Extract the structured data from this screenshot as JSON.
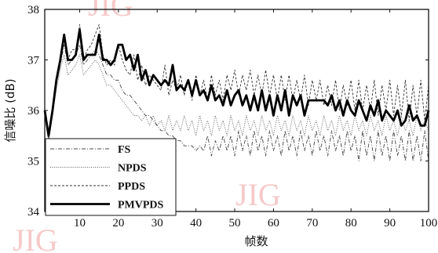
{
  "chart_data": {
    "type": "line",
    "title": "",
    "xlabel": "帧数",
    "ylabel": "信噪比 (dB)",
    "xlim": [
      1,
      100
    ],
    "ylim": [
      34,
      38
    ],
    "xticks": [
      10,
      20,
      30,
      40,
      50,
      60,
      70,
      80,
      90,
      100
    ],
    "yticks": [
      34,
      35,
      36,
      37,
      38
    ],
    "grid": false,
    "legend_position": "bottom-left",
    "x": [
      1,
      2,
      3,
      4,
      5,
      6,
      7,
      8,
      9,
      10,
      11,
      12,
      13,
      14,
      15,
      16,
      17,
      18,
      19,
      20,
      21,
      22,
      23,
      24,
      25,
      26,
      27,
      28,
      29,
      30,
      31,
      32,
      33,
      34,
      35,
      36,
      37,
      38,
      39,
      40,
      41,
      42,
      43,
      44,
      45,
      46,
      47,
      48,
      49,
      50,
      51,
      52,
      53,
      54,
      55,
      56,
      57,
      58,
      59,
      60,
      61,
      62,
      63,
      64,
      65,
      66,
      67,
      68,
      69,
      70,
      71,
      72,
      73,
      74,
      75,
      76,
      77,
      78,
      79,
      80,
      81,
      82,
      83,
      84,
      85,
      86,
      87,
      88,
      89,
      90,
      91,
      92,
      93,
      94,
      95,
      96,
      97,
      98,
      99,
      100
    ],
    "series": [
      {
        "name": "FS",
        "style": "dashdot",
        "values": [
          36.0,
          35.4,
          35.9,
          36.5,
          36.9,
          37.3,
          36.9,
          37.0,
          37.1,
          37.3,
          36.9,
          37.0,
          37.1,
          37.2,
          37.1,
          36.9,
          36.7,
          36.7,
          36.6,
          36.6,
          36.4,
          36.3,
          36.3,
          36.2,
          36.1,
          36.0,
          35.9,
          35.9,
          35.8,
          35.7,
          35.6,
          35.6,
          35.5,
          35.5,
          35.4,
          35.4,
          35.3,
          35.3,
          35.3,
          35.2,
          35.3,
          35.2,
          35.5,
          35.1,
          35.4,
          35.2,
          35.5,
          35.2,
          35.5,
          35.1,
          35.6,
          35.2,
          35.5,
          35.1,
          35.6,
          35.2,
          35.5,
          35.1,
          35.6,
          35.2,
          35.5,
          35.1,
          35.6,
          35.2,
          35.5,
          35.1,
          35.6,
          35.2,
          35.5,
          35.1,
          35.6,
          35.2,
          35.5,
          35.1,
          35.6,
          35.2,
          35.5,
          35.1,
          35.6,
          35.2,
          35.5,
          35.0,
          35.6,
          35.1,
          35.5,
          35.0,
          35.6,
          35.1,
          35.5,
          35.0,
          35.6,
          35.1,
          35.5,
          35.0,
          35.6,
          35.0,
          35.5,
          35.0,
          35.6,
          35.0
        ]
      },
      {
        "name": "NPDS",
        "style": "dotted",
        "values": [
          35.9,
          35.4,
          35.9,
          36.4,
          36.8,
          37.1,
          36.7,
          36.8,
          36.9,
          37.1,
          36.7,
          36.8,
          36.9,
          37.0,
          36.9,
          36.7,
          36.5,
          36.5,
          36.4,
          36.3,
          36.2,
          36.1,
          36.0,
          35.9,
          35.9,
          35.8,
          35.9,
          35.7,
          35.9,
          35.7,
          35.8,
          35.6,
          35.9,
          35.6,
          35.8,
          35.6,
          35.9,
          35.6,
          35.8,
          35.5,
          35.9,
          35.6,
          35.8,
          35.5,
          35.9,
          35.6,
          35.8,
          35.5,
          35.9,
          35.6,
          35.8,
          35.5,
          35.9,
          35.6,
          35.8,
          35.5,
          35.9,
          35.6,
          35.8,
          35.5,
          35.9,
          35.6,
          35.8,
          35.5,
          35.9,
          35.6,
          35.8,
          35.5,
          35.9,
          35.6,
          35.8,
          35.5,
          35.9,
          35.6,
          35.8,
          35.5,
          35.9,
          35.6,
          35.8,
          35.5,
          35.9,
          35.6,
          35.8,
          35.5,
          35.9,
          35.6,
          35.8,
          35.5,
          35.9,
          35.6,
          35.8,
          35.5,
          35.9,
          35.6,
          35.8,
          35.5,
          35.9,
          35.6,
          35.8,
          35.6
        ]
      },
      {
        "name": "PPDS",
        "style": "dashed",
        "values": [
          36.0,
          35.5,
          36.0,
          36.6,
          37.0,
          37.5,
          37.0,
          37.2,
          37.2,
          37.7,
          37.0,
          37.2,
          37.3,
          37.5,
          37.7,
          37.1,
          36.9,
          37.0,
          36.9,
          37.3,
          37.0,
          36.8,
          36.7,
          37.1,
          36.6,
          36.9,
          36.5,
          36.7,
          36.6,
          36.5,
          36.4,
          36.9,
          36.3,
          36.6,
          36.4,
          36.7,
          36.3,
          36.6,
          36.2,
          36.7,
          36.3,
          36.6,
          36.2,
          36.7,
          36.3,
          36.6,
          36.2,
          36.7,
          36.4,
          36.8,
          36.3,
          36.7,
          36.4,
          36.8,
          36.3,
          36.7,
          36.3,
          36.8,
          36.3,
          36.7,
          36.2,
          36.7,
          36.2,
          36.7,
          36.2,
          36.6,
          36.2,
          36.7,
          36.1,
          36.6,
          36.2,
          36.6,
          36.1,
          36.5,
          36.1,
          36.6,
          36.0,
          36.5,
          36.1,
          36.6,
          36.0,
          36.6,
          36.0,
          36.5,
          36.0,
          36.6,
          35.9,
          36.5,
          36.0,
          36.6,
          35.9,
          36.5,
          35.9,
          36.6,
          35.8,
          36.5,
          35.9,
          36.6,
          35.8,
          36.5
        ]
      },
      {
        "name": "PMVPDS",
        "style": "solid-bold",
        "values": [
          36.0,
          35.5,
          36.0,
          36.6,
          37.0,
          37.5,
          37.0,
          37.0,
          37.1,
          37.6,
          37.0,
          37.1,
          37.1,
          37.1,
          37.5,
          37.0,
          37.0,
          36.9,
          37.0,
          37.3,
          37.3,
          37.0,
          37.1,
          36.8,
          37.1,
          36.6,
          36.8,
          36.5,
          36.7,
          36.6,
          36.5,
          36.6,
          36.5,
          36.9,
          36.4,
          36.5,
          36.4,
          36.6,
          36.3,
          36.6,
          36.3,
          36.4,
          36.2,
          36.5,
          36.2,
          36.3,
          36.1,
          36.4,
          36.1,
          36.3,
          36.4,
          36.1,
          36.3,
          36.0,
          36.3,
          36.0,
          36.4,
          36.0,
          36.3,
          35.9,
          36.3,
          36.0,
          36.4,
          35.9,
          36.3,
          36.1,
          36.3,
          35.9,
          36.2,
          36.2,
          36.2,
          36.2,
          36.2,
          36.1,
          36.3,
          36.0,
          36.2,
          35.9,
          36.2,
          36.0,
          35.9,
          36.2,
          36.0,
          35.8,
          36.1,
          35.9,
          36.2,
          35.8,
          36.0,
          35.9,
          35.8,
          36.0,
          35.7,
          35.8,
          36.1,
          35.8,
          35.9,
          35.7,
          35.7,
          36.0
        ]
      }
    ]
  },
  "watermark": "JIG"
}
